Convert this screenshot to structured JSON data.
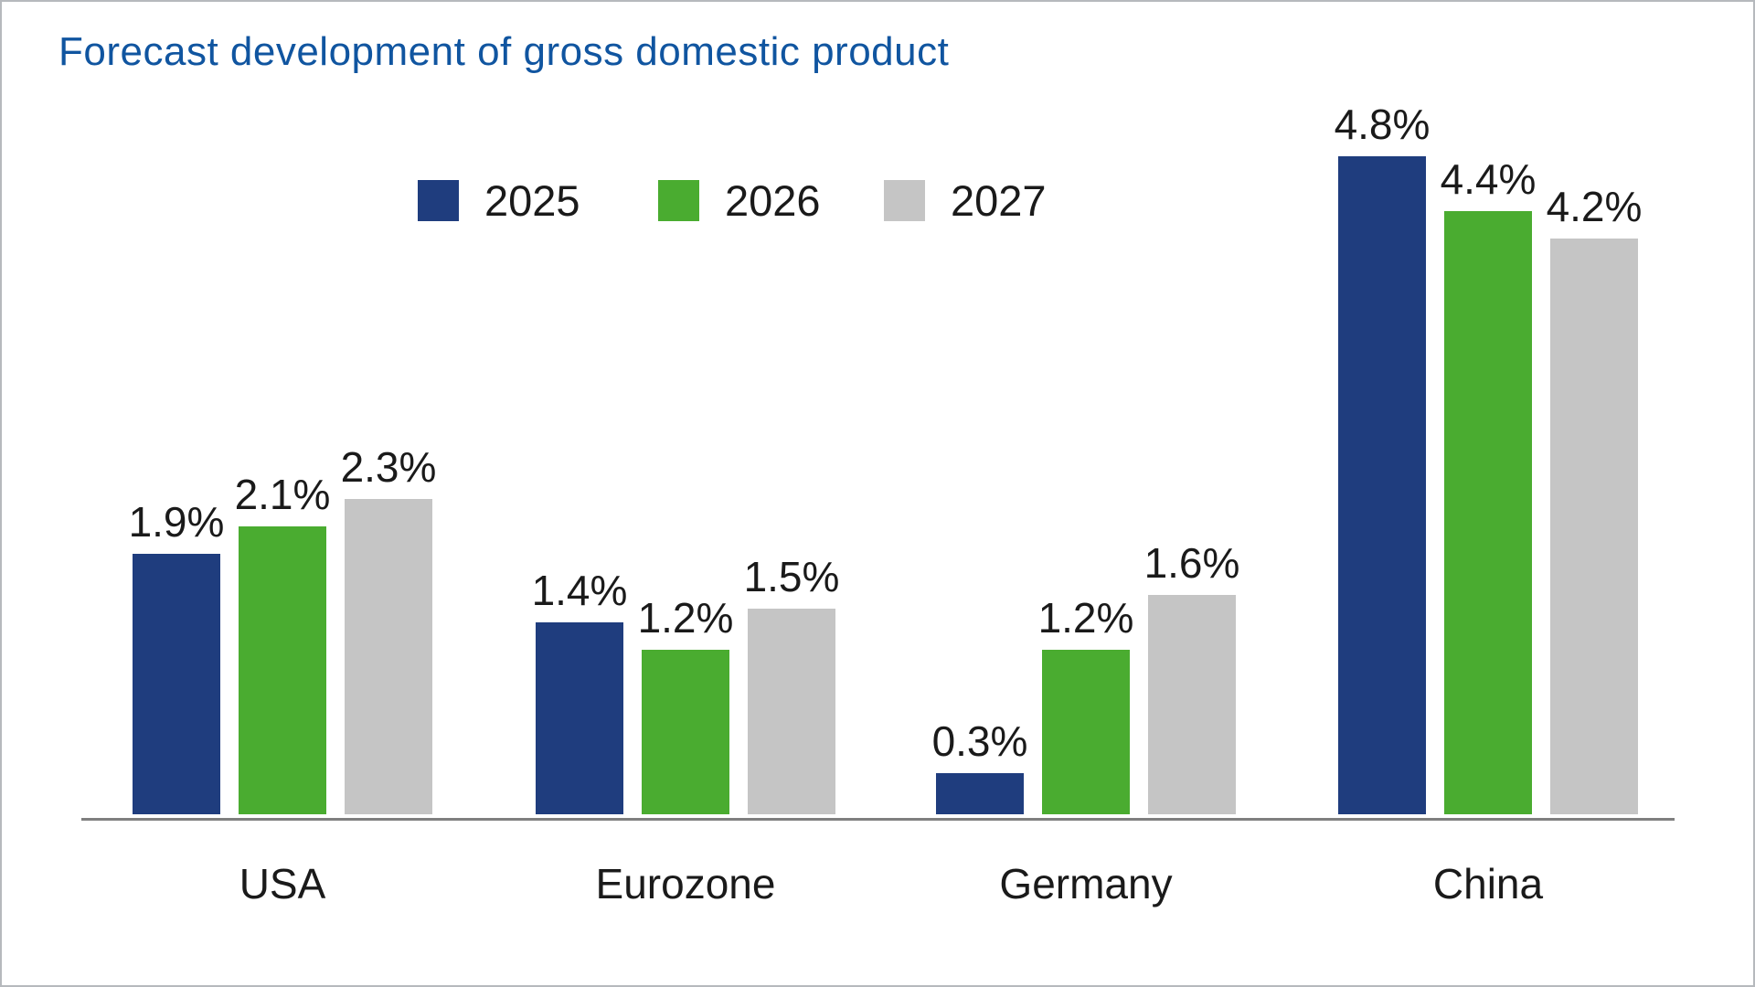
{
  "title": "Forecast development of gross domestic product",
  "chart_data": {
    "type": "bar",
    "title": "Forecast development of gross domestic product",
    "categories": [
      "USA",
      "Eurozone",
      "Germany",
      "China"
    ],
    "series": [
      {
        "name": "2025",
        "color": "#1F3D7E",
        "values": [
          1.9,
          1.4,
          0.3,
          4.8
        ]
      },
      {
        "name": "2026",
        "color": "#4AAC30",
        "values": [
          2.1,
          1.2,
          1.2,
          4.4
        ]
      },
      {
        "name": "2027",
        "color": "#C5C5C5",
        "values": [
          2.3,
          1.5,
          1.6,
          4.2
        ]
      }
    ],
    "unit": "%",
    "data_labels": [
      "1.9%",
      "2.1%",
      "2.3%",
      "1.4%",
      "1.2%",
      "1.5%",
      "0.3%",
      "1.2%",
      "1.6%",
      "4.8%",
      "4.4%",
      "4.2%"
    ],
    "ylim": [
      0,
      5
    ],
    "grid": false,
    "axis": "x-baseline-only",
    "legend_position": "top",
    "legend_entries": [
      "2025",
      "2026",
      "2027"
    ]
  },
  "colors": {
    "title": "#1055A0",
    "axis_line": "#7F7F7F",
    "label_text": "#1A1A1A",
    "background": "#FFFFFF",
    "border": "#B6B9BD",
    "bar_2025": "#1F3D7E",
    "bar_2026": "#4AAC30",
    "bar_2027": "#C5C5C5"
  }
}
